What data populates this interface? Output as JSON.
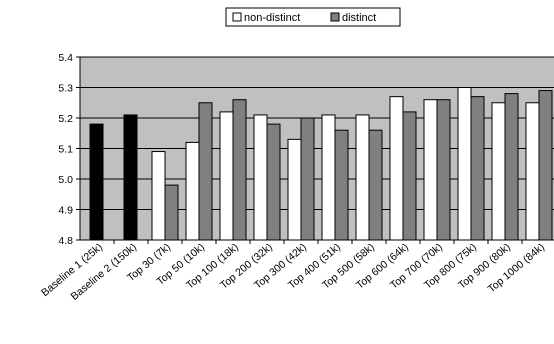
{
  "chart_data": {
    "type": "bar",
    "title": "",
    "xlabel": "",
    "ylabel": "",
    "ylim": [
      4.8,
      5.4
    ],
    "yticks": [
      "4.8",
      "4.9",
      "5.0",
      "5.1",
      "5.2",
      "5.3",
      "5.4"
    ],
    "grid": "horizontal",
    "legend_position": "top-center",
    "plot_background": "#c0c0c0",
    "categories": [
      "Baseline 1 (25k)",
      "Baseline 2 (150k)",
      "Top 30 (7k)",
      "Top 50 (10k)",
      "Top 100 (18k)",
      "Top 200 (32k)",
      "Top 300 (42k)",
      "Top 400 (51k)",
      "Top 500 (58k)",
      "Top 600 (64k)",
      "Top 700 (70k)",
      "Top 800 (75k)",
      "Top 900 (80k)",
      "Top 1000 (84k)"
    ],
    "baseline_values": [
      5.18,
      5.21
    ],
    "baseline_color": "#000000",
    "series": [
      {
        "name": "non-distinct",
        "color": "#ffffff",
        "values": [
          null,
          null,
          5.09,
          5.12,
          5.22,
          5.21,
          5.13,
          5.21,
          5.21,
          5.27,
          5.26,
          5.3,
          5.25,
          5.25
        ]
      },
      {
        "name": "distinct",
        "color": "#808080",
        "values": [
          null,
          null,
          4.98,
          5.25,
          5.26,
          5.18,
          5.2,
          5.16,
          5.16,
          5.22,
          5.26,
          5.27,
          5.28,
          5.29
        ]
      }
    ]
  }
}
